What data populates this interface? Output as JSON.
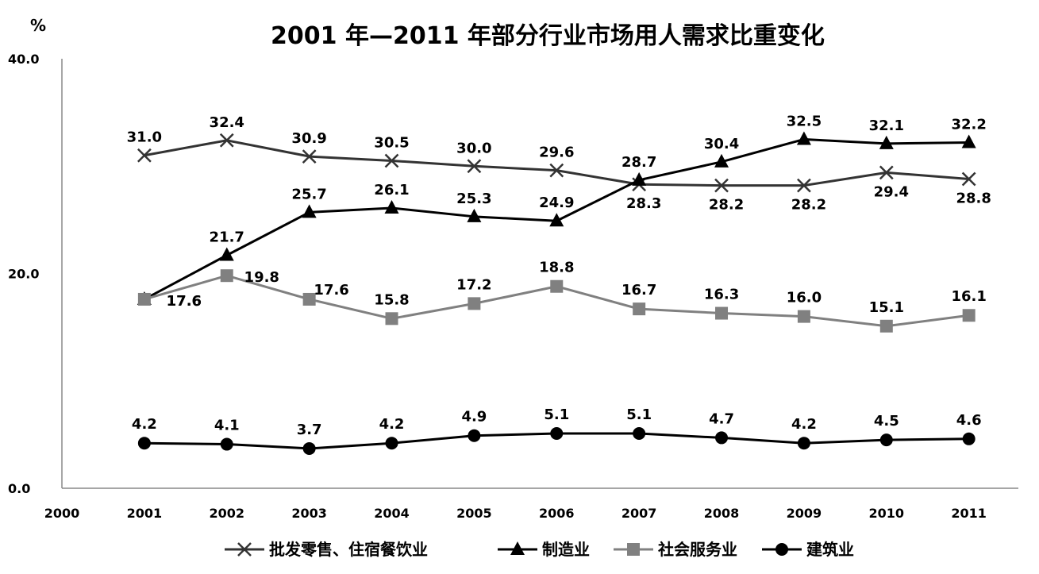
{
  "chart_data": {
    "type": "line",
    "title": "2001 年—2011 年部分行业市场用人需求比重变化",
    "ylabel": "%",
    "xlabel": "",
    "x_ticks": [
      "2000",
      "2001",
      "2002",
      "2003",
      "2004",
      "2005",
      "2006",
      "2007",
      "2008",
      "2009",
      "2010",
      "2011"
    ],
    "y_ticks": [
      "0.0",
      "20.0",
      "40.0"
    ],
    "ylim": [
      0,
      40
    ],
    "xlim": [
      2000,
      2011.6
    ],
    "grid": false,
    "legend_position": "bottom",
    "categories": [
      2001,
      2002,
      2003,
      2004,
      2005,
      2006,
      2007,
      2008,
      2009,
      2010,
      2011
    ],
    "series": [
      {
        "name": "批发零售、住宿餐饮业",
        "marker": "x",
        "color": "#333333",
        "values": [
          31.0,
          32.4,
          30.9,
          30.5,
          30.0,
          29.6,
          28.3,
          28.2,
          28.2,
          29.4,
          28.8
        ],
        "labels": [
          "31.0",
          "32.4",
          "30.9",
          "30.5",
          "30.0",
          "29.6",
          "28.3",
          "28.2",
          "28.2",
          "29.4",
          "28.8"
        ]
      },
      {
        "name": "制造业",
        "marker": "triangle",
        "color": "#000000",
        "values": [
          17.6,
          21.7,
          25.7,
          26.1,
          25.3,
          24.9,
          28.7,
          30.4,
          32.5,
          32.1,
          32.2
        ],
        "labels": [
          "17.6",
          "21.7",
          "25.7",
          "26.1",
          "25.3",
          "24.9",
          "28.7",
          "30.4",
          "32.5",
          "32.1",
          "32.2"
        ]
      },
      {
        "name": "社会服务业",
        "marker": "square",
        "color": "#808080",
        "values": [
          17.6,
          19.8,
          17.6,
          15.8,
          17.2,
          18.8,
          16.7,
          16.3,
          16.0,
          15.1,
          16.1
        ],
        "labels": [
          "17.6",
          "19.8",
          "17.6",
          "15.8",
          "17.2",
          "18.8",
          "16.7",
          "16.3",
          "16.0",
          "15.1",
          "16.1"
        ]
      },
      {
        "name": "建筑业",
        "marker": "circle",
        "color": "#000000",
        "values": [
          4.2,
          4.1,
          3.7,
          4.2,
          4.9,
          5.1,
          5.1,
          4.7,
          4.2,
          4.5,
          4.6
        ],
        "labels": [
          "4.2",
          "4.1",
          "3.7",
          "4.2",
          "4.9",
          "5.1",
          "5.1",
          "4.7",
          "4.2",
          "4.5",
          "4.6"
        ]
      }
    ]
  }
}
